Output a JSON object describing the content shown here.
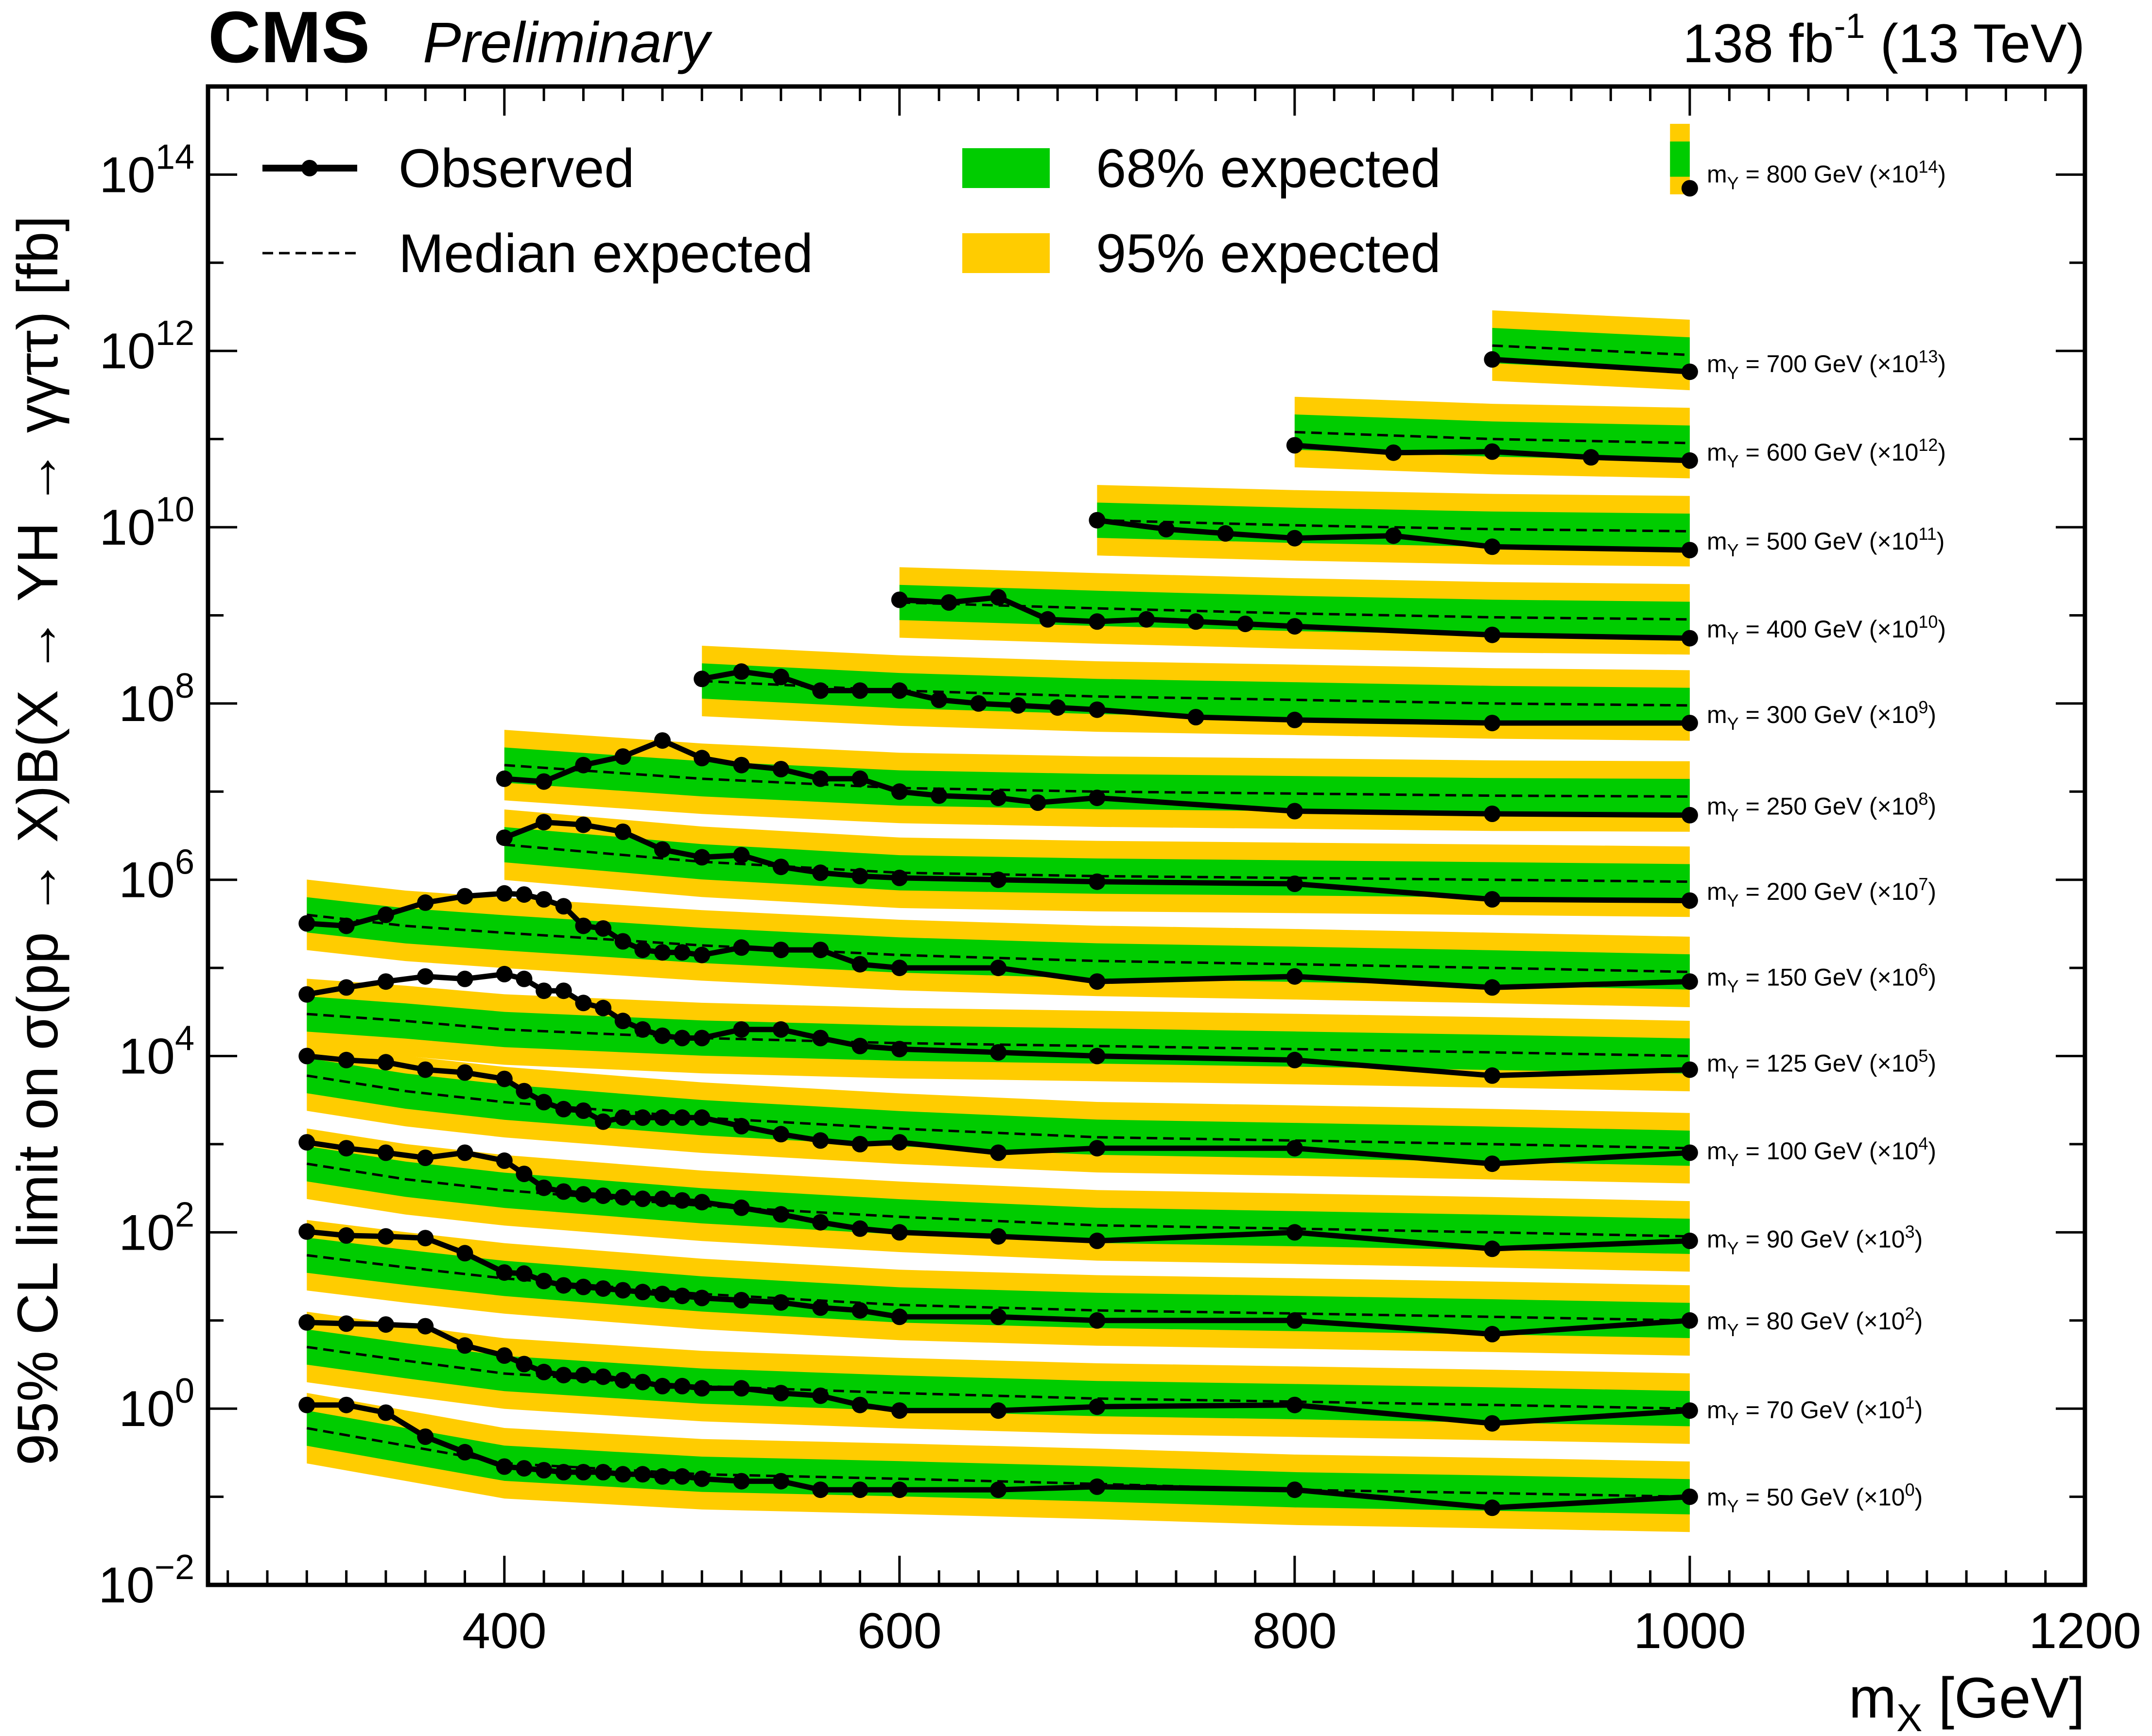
{
  "header": {
    "experiment": "CMS",
    "status": "Preliminary",
    "luminosity_value": "138 fb",
    "luminosity_exp": "-1",
    "energy": "(13 TeV)"
  },
  "colors": {
    "band68": "#00cc00",
    "band95": "#ffcc00",
    "observed": "#000000",
    "expected": "#000000"
  },
  "legend": {
    "observed": "Observed",
    "median": "Median expected",
    "band68": "68% expected",
    "band95": "95% expected"
  },
  "chart_data": {
    "type": "line",
    "x_axis": {
      "label_main": "m",
      "label_sub": "X",
      "label_unit": "[GeV]",
      "range": [
        250,
        1200
      ],
      "ticks": [
        400,
        600,
        800,
        1000,
        1200
      ],
      "tick_labels": [
        "400",
        "600",
        "800",
        "1000",
        "1200"
      ]
    },
    "y_axis": {
      "label": "95% CL limit on σ(pp → X)B(X → YH → γγττ) [fb]",
      "scale": "log",
      "range": [
        0.01,
        1000000000000000.0
      ],
      "ticks": [
        0.01,
        1,
        100,
        10000,
        1000000,
        100000000,
        10000000000,
        1000000000000,
        100000000000000
      ],
      "tick_bases": [
        "10",
        "10",
        "10",
        "10",
        "10",
        "10",
        "10",
        "10",
        "10"
      ],
      "tick_exps": [
        "−2",
        "0",
        "2",
        "4",
        "6",
        "8",
        "10",
        "12",
        "14"
      ]
    },
    "series": [
      {
        "label_pre": "m",
        "label_sub": "Y",
        "label_mid": " = 50 GeV (×10",
        "label_exp": "0",
        "label_post": ")",
        "obs_x": [
          300,
          320,
          340,
          360,
          380,
          400,
          410,
          420,
          430,
          440,
          450,
          460,
          470,
          480,
          490,
          500,
          520,
          540,
          560,
          580,
          600,
          650,
          700,
          800,
          900,
          1000
        ],
        "obs_y": [
          1.1,
          1.1,
          0.9,
          0.48,
          0.32,
          0.22,
          0.21,
          0.2,
          0.19,
          0.19,
          0.19,
          0.18,
          0.18,
          0.17,
          0.17,
          0.16,
          0.15,
          0.15,
          0.12,
          0.12,
          0.12,
          0.12,
          0.13,
          0.12,
          0.075,
          0.1
        ],
        "exp_x": [
          300,
          350,
          400,
          500,
          600,
          700,
          800,
          900,
          1000
        ],
        "exp_y": [
          0.6,
          0.38,
          0.24,
          0.18,
          0.16,
          0.14,
          0.12,
          0.11,
          0.1
        ]
      },
      {
        "label_pre": "m",
        "label_sub": "Y",
        "label_mid": " = 70 GeV (×10",
        "label_exp": "1",
        "label_post": ")",
        "obs_x": [
          300,
          320,
          340,
          360,
          380,
          400,
          410,
          420,
          430,
          440,
          450,
          460,
          470,
          480,
          490,
          500,
          520,
          540,
          560,
          580,
          600,
          650,
          700,
          800,
          900,
          1000
        ],
        "obs_y": [
          9.5,
          9.2,
          9,
          8.6,
          5.2,
          4,
          3.2,
          2.6,
          2.4,
          2.4,
          2.3,
          2.1,
          2,
          1.8,
          1.8,
          1.7,
          1.7,
          1.5,
          1.4,
          1.1,
          0.95,
          0.95,
          1.05,
          1.1,
          0.68,
          0.95
        ],
        "exp_x": [
          300,
          350,
          400,
          500,
          600,
          700,
          800,
          900,
          1000
        ],
        "exp_y": [
          5,
          3.5,
          2.5,
          1.8,
          1.5,
          1.3,
          1.2,
          1.1,
          1.0
        ]
      },
      {
        "label_pre": "m",
        "label_sub": "Y",
        "label_mid": " = 80 GeV (×10",
        "label_exp": "2",
        "label_post": ")",
        "obs_x": [
          300,
          320,
          340,
          360,
          380,
          400,
          410,
          420,
          430,
          440,
          450,
          460,
          470,
          480,
          490,
          500,
          520,
          540,
          560,
          580,
          600,
          650,
          700,
          800,
          900,
          1000
        ],
        "obs_y": [
          102,
          92,
          90,
          86,
          58,
          35,
          34,
          28,
          25,
          24,
          23,
          22,
          21,
          20,
          19,
          18,
          17,
          16,
          14,
          13,
          11,
          11,
          10,
          10,
          7,
          10
        ],
        "exp_x": [
          300,
          350,
          400,
          500,
          600,
          700,
          800,
          900,
          1000
        ],
        "exp_y": [
          55,
          40,
          30,
          20,
          15,
          13,
          12,
          11,
          10
        ]
      },
      {
        "label_pre": "m",
        "label_sub": "Y",
        "label_mid": " = 90 GeV (×10",
        "label_exp": "3",
        "label_post": ")",
        "obs_x": [
          300,
          320,
          340,
          360,
          380,
          400,
          410,
          420,
          430,
          440,
          450,
          460,
          470,
          480,
          490,
          500,
          520,
          540,
          560,
          580,
          600,
          650,
          700,
          800,
          900,
          1000
        ],
        "obs_y": [
          1050,
          900,
          800,
          700,
          800,
          650,
          460,
          320,
          290,
          270,
          260,
          250,
          240,
          240,
          230,
          220,
          190,
          160,
          130,
          110,
          100,
          90,
          80,
          100,
          65,
          80
        ],
        "exp_x": [
          300,
          350,
          400,
          500,
          600,
          700,
          800,
          900,
          1000
        ],
        "exp_y": [
          600,
          400,
          300,
          200,
          150,
          120,
          110,
          100,
          90
        ]
      },
      {
        "label_pre": "m",
        "label_sub": "Y",
        "label_mid": " = 100 GeV (×10",
        "label_exp": "4",
        "label_post": ")",
        "obs_x": [
          300,
          320,
          340,
          360,
          380,
          400,
          410,
          420,
          430,
          440,
          450,
          460,
          470,
          480,
          490,
          500,
          520,
          540,
          560,
          580,
          600,
          650,
          700,
          800,
          900,
          1000
        ],
        "obs_y": [
          10000,
          9000,
          8500,
          7000,
          6500,
          5500,
          4000,
          3000,
          2500,
          2400,
          1800,
          2000,
          2000,
          2000,
          2000,
          2000,
          1600,
          1300,
          1100,
          1000,
          1050,
          800,
          900,
          900,
          600,
          800
        ],
        "exp_x": [
          300,
          350,
          400,
          500,
          600,
          700,
          800,
          900,
          1000
        ],
        "exp_y": [
          6000,
          4000,
          3000,
          2000,
          1500,
          1200,
          1100,
          1000,
          900
        ]
      },
      {
        "label_pre": "m",
        "label_sub": "Y",
        "label_mid": " = 125 GeV (×10",
        "label_exp": "5",
        "label_post": ")",
        "obs_x": [
          300,
          320,
          340,
          360,
          380,
          400,
          410,
          420,
          430,
          440,
          450,
          460,
          470,
          480,
          490,
          500,
          520,
          540,
          560,
          580,
          600,
          650,
          700,
          800,
          900,
          1000
        ],
        "obs_y": [
          50000,
          60000,
          70000,
          80000,
          75000,
          85000,
          75000,
          55000,
          55000,
          40000,
          35000,
          25000,
          20000,
          17000,
          16000,
          16000,
          20000,
          20000,
          16000,
          13000,
          12000,
          11000,
          10000,
          9000,
          6000,
          7000
        ],
        "exp_x": [
          300,
          350,
          400,
          500,
          600,
          700,
          800,
          900,
          1000
        ],
        "exp_y": [
          30000,
          25000,
          20000,
          16000,
          14000,
          13000,
          12000,
          11000,
          10000
        ]
      },
      {
        "label_pre": "m",
        "label_sub": "Y",
        "label_mid": " = 150 GeV (×10",
        "label_exp": "6",
        "label_post": ")",
        "obs_x": [
          300,
          320,
          340,
          360,
          380,
          400,
          410,
          420,
          430,
          440,
          450,
          460,
          470,
          480,
          490,
          500,
          520,
          540,
          560,
          580,
          600,
          650,
          700,
          800,
          900,
          1000
        ],
        "obs_y": [
          320000,
          300000,
          400000,
          550000,
          650000,
          700000,
          680000,
          600000,
          500000,
          300000,
          280000,
          200000,
          160000,
          150000,
          150000,
          140000,
          170000,
          160000,
          160000,
          110000,
          100000,
          100000,
          70000,
          80000,
          60000,
          70000
        ],
        "exp_x": [
          300,
          350,
          400,
          500,
          600,
          700,
          800,
          900,
          1000
        ],
        "exp_y": [
          400000,
          300000,
          250000,
          180000,
          140000,
          120000,
          110000,
          100000,
          90000
        ]
      },
      {
        "label_pre": "m",
        "label_sub": "Y",
        "label_mid": " = 200 GeV (×10",
        "label_exp": "7",
        "label_post": ")",
        "obs_x": [
          400,
          420,
          440,
          460,
          480,
          500,
          520,
          540,
          560,
          580,
          600,
          650,
          700,
          800,
          900,
          1000
        ],
        "obs_y": [
          3000000,
          4500000,
          4200000,
          3500000,
          2200000,
          1800000,
          1900000,
          1400000,
          1200000,
          1100000,
          1050000,
          1000000,
          950000,
          900000,
          600000,
          580000
        ],
        "exp_x": [
          400,
          500,
          600,
          700,
          800,
          900,
          1000
        ],
        "exp_y": [
          2500000,
          1600000,
          1200000,
          1100000,
          1050000,
          1000000,
          950000
        ]
      },
      {
        "label_pre": "m",
        "label_sub": "Y",
        "label_mid": " = 250 GeV (×10",
        "label_exp": "8",
        "label_post": ")",
        "obs_x": [
          400,
          420,
          440,
          460,
          480,
          500,
          520,
          540,
          560,
          580,
          600,
          620,
          650,
          670,
          700,
          800,
          900,
          1000
        ],
        "obs_y": [
          14000000,
          13000000,
          20000000,
          25000000,
          38000000,
          24000000,
          20000000,
          18000000,
          14000000,
          14000000,
          10000000,
          9000000,
          8500000,
          7500000,
          8500000,
          6000000,
          5600000,
          5400000
        ],
        "exp_x": [
          400,
          500,
          600,
          700,
          800,
          900,
          1000
        ],
        "exp_y": [
          20000000,
          14000000,
          11000000,
          10000000,
          9500000,
          9000000,
          8800000
        ]
      },
      {
        "label_pre": "m",
        "label_sub": "Y",
        "label_mid": " = 300 GeV (×10",
        "label_exp": "9",
        "label_post": ")",
        "obs_x": [
          500,
          520,
          540,
          560,
          580,
          600,
          620,
          640,
          660,
          680,
          700,
          750,
          800,
          900,
          1000
        ],
        "obs_y": [
          190000000,
          230000000,
          200000000,
          140000000,
          140000000,
          140000000,
          110000000,
          100000000,
          95000000,
          90000000,
          85000000,
          70000000,
          65000000,
          60000000,
          60000000
        ],
        "exp_x": [
          500,
          600,
          700,
          800,
          900,
          1000
        ],
        "exp_y": [
          180000000,
          140000000,
          120000000,
          110000000,
          100000000,
          95000000
        ]
      },
      {
        "label_pre": "m",
        "label_sub": "Y",
        "label_mid": " = 400 GeV (×10",
        "label_exp": "10",
        "label_post": ")",
        "obs_x": [
          600,
          625,
          650,
          675,
          700,
          725,
          750,
          775,
          800,
          900,
          1000
        ],
        "obs_y": [
          1500000000,
          1400000000,
          1600000000,
          900000000,
          850000000,
          900000000,
          850000000,
          800000000,
          750000000,
          600000000,
          550000000
        ],
        "exp_x": [
          600,
          700,
          800,
          900,
          1000
        ],
        "exp_y": [
          1400000000,
          1200000000,
          1050000000,
          950000000,
          900000000
        ]
      },
      {
        "label_pre": "m",
        "label_sub": "Y",
        "label_mid": " = 500 GeV (×10",
        "label_exp": "11",
        "label_post": ")",
        "obs_x": [
          700,
          735,
          765,
          800,
          850,
          900,
          1000
        ],
        "obs_y": [
          12000000000,
          9500000000,
          8500000000,
          7500000000,
          8000000000,
          6000000000,
          5500000000
        ],
        "exp_x": [
          700,
          800,
          900,
          1000
        ],
        "exp_y": [
          12000000000,
          10500000000,
          9500000000,
          9000000000
        ]
      },
      {
        "label_pre": "m",
        "label_sub": "Y",
        "label_mid": " = 600 GeV (×10",
        "label_exp": "12",
        "label_post": ")",
        "obs_x": [
          800,
          850,
          900,
          950,
          1000
        ],
        "obs_y": [
          85000000000,
          70000000000,
          72000000000,
          62000000000,
          57000000000
        ],
        "exp_x": [
          800,
          900,
          1000
        ],
        "exp_y": [
          120000000000,
          100000000000,
          90000000000
        ]
      },
      {
        "label_pre": "m",
        "label_sub": "Y",
        "label_mid": " = 700 GeV (×10",
        "label_exp": "13",
        "label_post": ")",
        "obs_x": [
          900,
          1000
        ],
        "obs_y": [
          800000000000,
          580000000000
        ],
        "exp_x": [
          900,
          1000
        ],
        "exp_y": [
          1150000000000,
          900000000000
        ]
      },
      {
        "label_pre": "m",
        "label_sub": "Y",
        "label_mid": " = 800 GeV (×10",
        "label_exp": "14",
        "label_post": ")",
        "obs_x": [
          1000
        ],
        "obs_y": [
          70000000000000
        ],
        "exp_x": [
          1000
        ],
        "exp_y": [
          150000000000000
        ]
      }
    ]
  }
}
